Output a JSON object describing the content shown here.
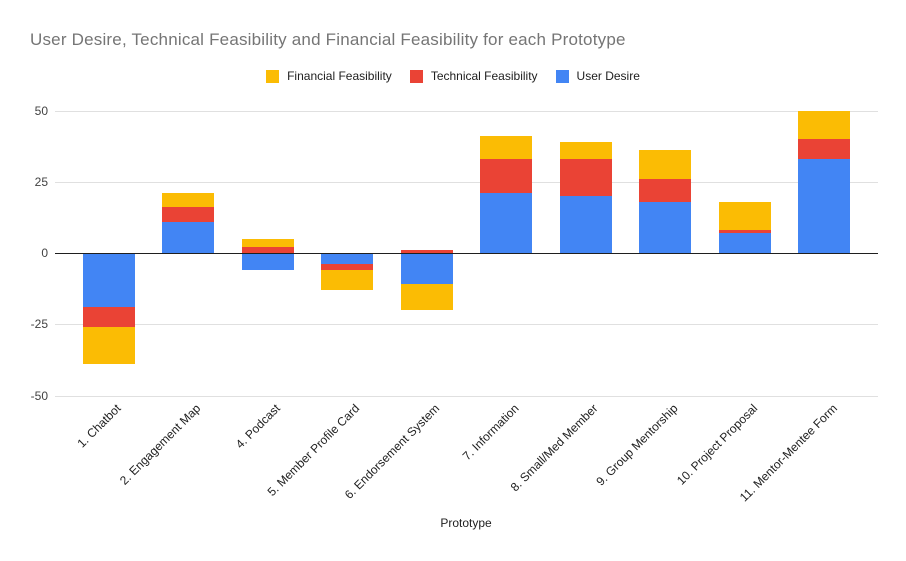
{
  "chart_data": {
    "type": "bar",
    "stacked": true,
    "title": "User Desire, Technical Feasibility and Financial Feasibility for each Prototype",
    "xlabel": "Prototype",
    "ylabel": "",
    "categories": [
      "1. Chatbot",
      "2. Engagement Map",
      "4. Podcast",
      "5. Member Profile Card",
      "6. Endorsement System",
      "7. Information",
      "8. Small/Med Member",
      "9. Group Mentorship",
      "10. Project Proposal",
      "11. Mentor-Mentee Form"
    ],
    "series": [
      {
        "name": "User Desire",
        "color": "#4285F4",
        "values": [
          -19,
          11,
          -6,
          -4,
          -11,
          21,
          20,
          18,
          7,
          33
        ]
      },
      {
        "name": "Technical Feasibility",
        "color": "#EA4335",
        "values": [
          -7,
          5,
          2,
          -2,
          1,
          12,
          13,
          8,
          1,
          7
        ]
      },
      {
        "name": "Financial Feasibility",
        "color": "#FBBC04",
        "values": [
          -13,
          5,
          3,
          -7,
          -9,
          8,
          6,
          10,
          10,
          10
        ]
      }
    ],
    "legend": {
      "position": "top",
      "items": [
        {
          "label": "Financial Feasibility",
          "color": "#FBBC04"
        },
        {
          "label": "Technical Feasibility",
          "color": "#EA4335"
        },
        {
          "label": "User Desire",
          "color": "#4285F4"
        }
      ]
    },
    "y_ticks": [
      50,
      25,
      0,
      -25,
      -50
    ],
    "ylim": [
      -50,
      50
    ],
    "grid": true
  },
  "colors": {
    "background": "#ffffff",
    "grid": "#e0e0e0",
    "zero_axis": "#1f1f1f",
    "title_text": "#757575",
    "y_tick_text": "#424242",
    "x_tick_text": "#212121",
    "legend_text": "#212121",
    "axis_title_text": "#212121"
  }
}
